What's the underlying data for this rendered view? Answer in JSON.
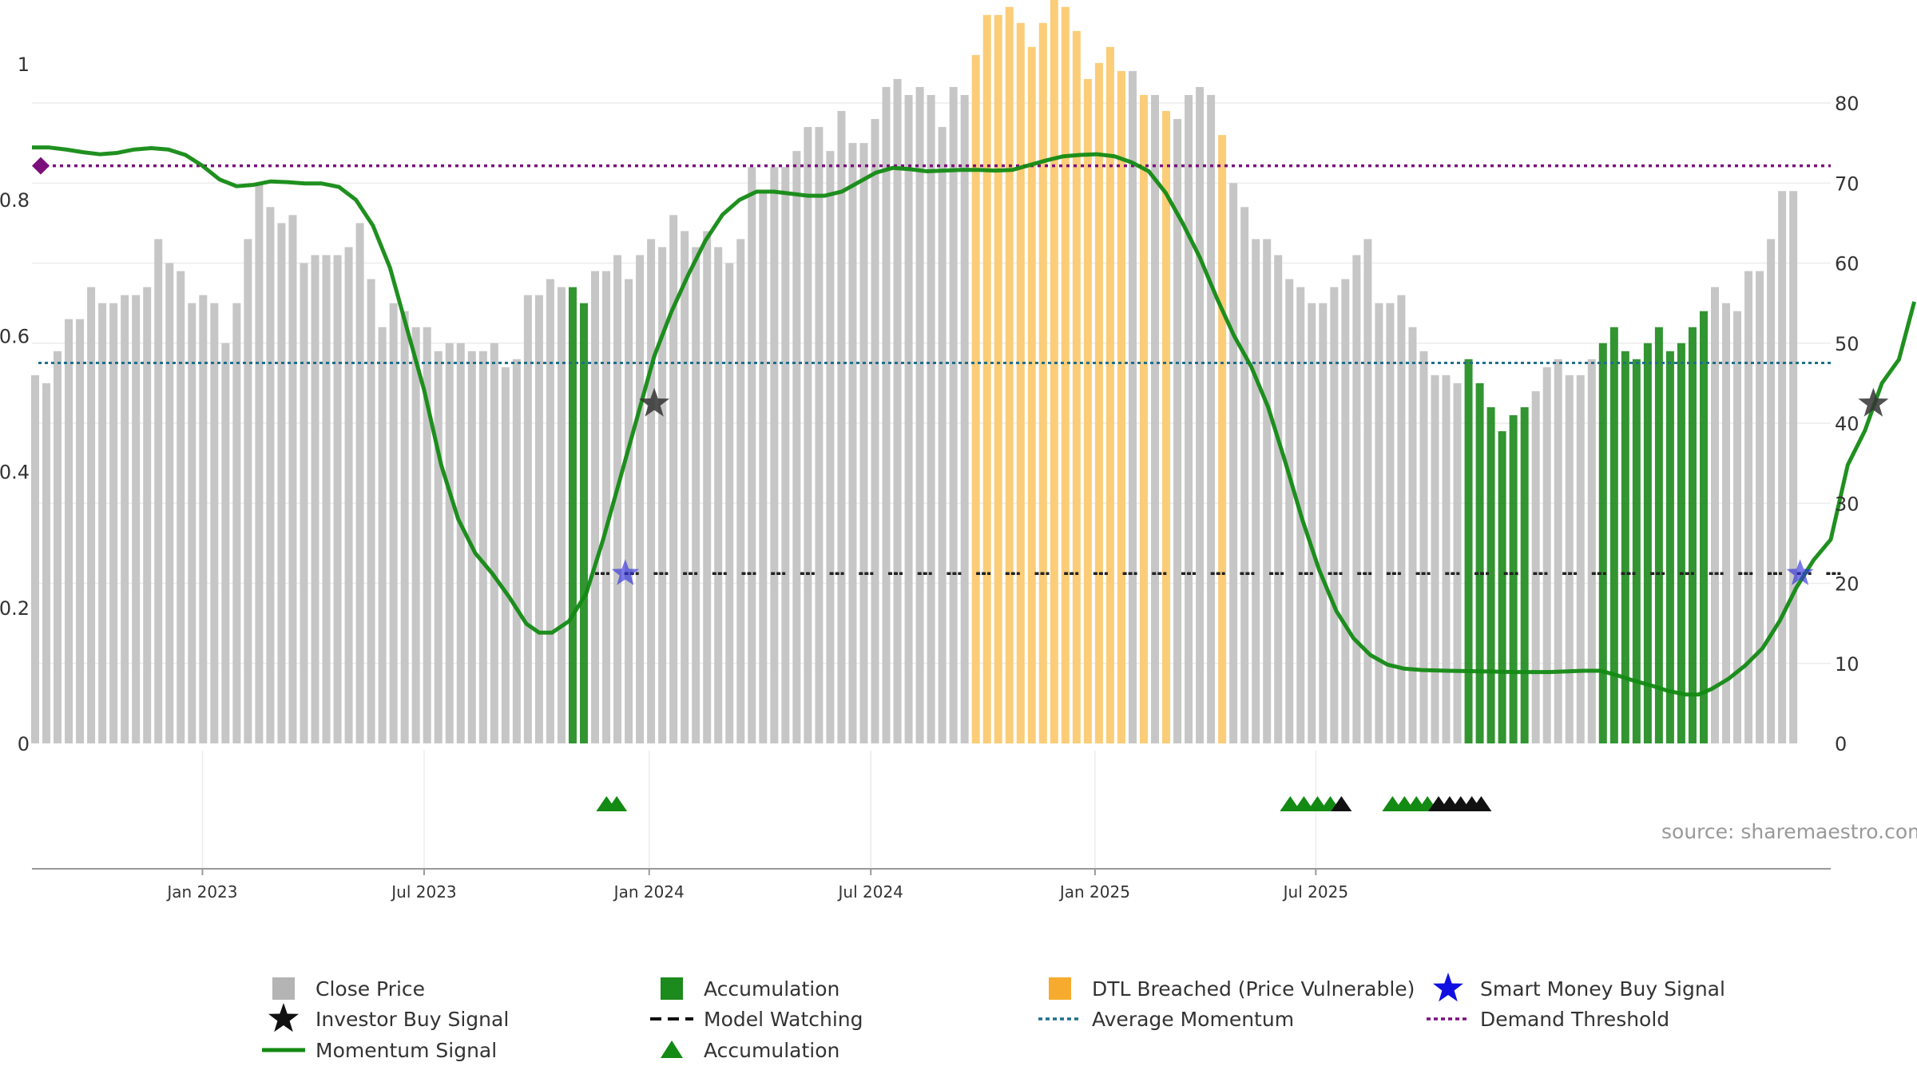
{
  "chart_data": {
    "type": "bar",
    "title": "",
    "source": "source: sharemaestro.com",
    "left_axis": {
      "range": [
        0,
        1
      ],
      "ticks": [
        "0",
        "0.2",
        "0.4",
        "0.6",
        "0.8",
        "1"
      ]
    },
    "right_axis": {
      "range": [
        0,
        80
      ],
      "ticks": [
        "0",
        "10",
        "20",
        "30",
        "40",
        "50",
        "60",
        "70",
        "80"
      ]
    },
    "x_axis": {
      "range_weeks": [
        -20,
        191
      ],
      "ticks": [
        {
          "label": "Jan 2023",
          "week": 0
        },
        {
          "label": "Jul 2023",
          "week": 26
        },
        {
          "label": "Jan 2024",
          "week": 52.4
        },
        {
          "label": "Jul 2024",
          "week": 78.4
        },
        {
          "label": "Jan 2025",
          "week": 104.7
        },
        {
          "label": "Jul 2025",
          "week": 130.6
        }
      ]
    },
    "close_price": [
      46,
      45,
      49,
      53,
      53,
      57,
      55,
      55,
      56,
      56,
      57,
      63,
      60,
      59,
      55,
      56,
      55,
      50,
      55,
      63,
      70,
      67,
      65,
      66,
      60,
      61,
      61,
      61,
      62,
      65,
      58,
      52,
      55,
      54,
      52,
      52,
      49,
      50,
      50,
      49,
      49,
      50,
      47,
      48,
      56,
      56,
      58,
      57,
      57,
      55,
      59,
      59,
      61,
      58,
      61,
      63,
      62,
      66,
      64,
      62,
      64,
      62,
      60,
      63,
      72,
      69,
      72,
      72,
      74,
      77,
      77,
      74,
      79,
      75,
      75,
      78,
      82,
      83,
      81,
      82,
      81,
      77,
      82,
      81,
      86,
      91,
      91,
      92,
      90,
      87,
      90,
      94,
      92,
      89,
      83,
      85,
      87,
      84,
      84,
      81,
      81,
      79,
      78,
      81,
      82,
      81,
      76,
      70,
      67,
      63,
      63,
      61,
      58,
      57,
      55,
      55,
      57,
      58,
      61,
      63,
      55,
      55,
      56,
      52,
      49,
      46,
      46,
      45,
      48,
      45,
      42,
      39,
      41,
      42,
      44,
      47,
      48,
      46,
      46,
      48,
      50,
      52,
      49,
      48,
      50,
      52,
      49,
      50,
      52,
      54,
      57,
      55,
      54,
      59,
      59,
      63,
      69,
      69
    ],
    "accumulation_weeks": [
      48,
      49,
      128,
      129,
      130,
      131,
      132,
      133,
      140,
      141,
      142,
      143,
      144,
      145,
      146,
      147,
      148,
      149
    ],
    "dtl_breached_weeks": [
      84,
      85,
      86,
      87,
      88,
      89,
      90,
      91,
      92,
      93,
      94,
      95,
      96,
      97,
      99,
      101,
      106
    ],
    "momentum_signal": [
      [
        -20,
        0.877
      ],
      [
        -18,
        0.877
      ],
      [
        -16,
        0.874
      ],
      [
        -14,
        0.87
      ],
      [
        -12,
        0.867
      ],
      [
        -10,
        0.869
      ],
      [
        -8,
        0.874
      ],
      [
        -6,
        0.876
      ],
      [
        -4,
        0.874
      ],
      [
        -2,
        0.866
      ],
      [
        0,
        0.85
      ],
      [
        2,
        0.83
      ],
      [
        4,
        0.82
      ],
      [
        6,
        0.822
      ],
      [
        8,
        0.827
      ],
      [
        10,
        0.826
      ],
      [
        12,
        0.824
      ],
      [
        14,
        0.824
      ],
      [
        16,
        0.819
      ],
      [
        18,
        0.8
      ],
      [
        20,
        0.762
      ],
      [
        22,
        0.7
      ],
      [
        24,
        0.61
      ],
      [
        26,
        0.52
      ],
      [
        28,
        0.41
      ],
      [
        30,
        0.33
      ],
      [
        32,
        0.28
      ],
      [
        34,
        0.25
      ],
      [
        36,
        0.215
      ],
      [
        38,
        0.176
      ],
      [
        39.5,
        0.163
      ],
      [
        41,
        0.163
      ],
      [
        43,
        0.18
      ],
      [
        45,
        0.22
      ],
      [
        47,
        0.3
      ],
      [
        49,
        0.39
      ],
      [
        51,
        0.48
      ],
      [
        53,
        0.57
      ],
      [
        55,
        0.635
      ],
      [
        57,
        0.69
      ],
      [
        59,
        0.74
      ],
      [
        61,
        0.778
      ],
      [
        63,
        0.8
      ],
      [
        65,
        0.812
      ],
      [
        67,
        0.812
      ],
      [
        69,
        0.809
      ],
      [
        71,
        0.806
      ],
      [
        73,
        0.806
      ],
      [
        75,
        0.812
      ],
      [
        77,
        0.826
      ],
      [
        79,
        0.84
      ],
      [
        81,
        0.847
      ],
      [
        83,
        0.845
      ],
      [
        85,
        0.842
      ],
      [
        87,
        0.843
      ],
      [
        89,
        0.844
      ],
      [
        91,
        0.844
      ],
      [
        93,
        0.843
      ],
      [
        95,
        0.844
      ],
      [
        97,
        0.851
      ],
      [
        99,
        0.858
      ],
      [
        101,
        0.864
      ],
      [
        103,
        0.866
      ],
      [
        105,
        0.867
      ],
      [
        107,
        0.864
      ],
      [
        109,
        0.855
      ],
      [
        111,
        0.842
      ],
      [
        113,
        0.81
      ],
      [
        115,
        0.765
      ],
      [
        117,
        0.715
      ],
      [
        119,
        0.655
      ],
      [
        121,
        0.6
      ],
      [
        123,
        0.555
      ],
      [
        125,
        0.495
      ],
      [
        127,
        0.415
      ],
      [
        129,
        0.33
      ],
      [
        131,
        0.255
      ],
      [
        133,
        0.195
      ],
      [
        135,
        0.155
      ],
      [
        137,
        0.13
      ],
      [
        139,
        0.116
      ],
      [
        141,
        0.11
      ],
      [
        143,
        0.108
      ],
      [
        146,
        0.107
      ],
      [
        150,
        0.106
      ],
      [
        154,
        0.105
      ],
      [
        158,
        0.105
      ],
      [
        162,
        0.107
      ],
      [
        164,
        0.107
      ],
      [
        166,
        0.1
      ],
      [
        168,
        0.092
      ],
      [
        170,
        0.085
      ],
      [
        172,
        0.077
      ],
      [
        174,
        0.072
      ],
      [
        175.5,
        0.072
      ],
      [
        177,
        0.08
      ],
      [
        179,
        0.095
      ],
      [
        181,
        0.115
      ],
      [
        183,
        0.14
      ],
      [
        185,
        0.18
      ],
      [
        187,
        0.23
      ],
      [
        189,
        0.27
      ],
      [
        191,
        0.3
      ],
      [
        193,
        0.41
      ],
      [
        195,
        0.46
      ],
      [
        197,
        0.53
      ],
      [
        199,
        0.565
      ],
      [
        200.8,
        0.65
      ]
    ],
    "average_momentum": 0.56,
    "demand_threshold": 0.85,
    "model_watching_level": 0.25,
    "model_watching_start_week": 50,
    "smart_money_buy_signals": [
      [
        49.6,
        0.25
      ],
      [
        187.4,
        0.25
      ]
    ],
    "investor_buy_signals": [
      [
        53,
        0.5
      ],
      [
        196,
        0.5
      ]
    ],
    "accumulation_triangles": [
      {
        "week": 47.4,
        "color": "green"
      },
      {
        "week": 48.6,
        "color": "green"
      },
      {
        "week": 127.6,
        "color": "green"
      },
      {
        "week": 129.2,
        "color": "green"
      },
      {
        "week": 130.8,
        "color": "green"
      },
      {
        "week": 132.3,
        "color": "green"
      },
      {
        "week": 133.6,
        "color": "black"
      },
      {
        "week": 139.6,
        "color": "green"
      },
      {
        "week": 141.0,
        "color": "green"
      },
      {
        "week": 142.4,
        "color": "green"
      },
      {
        "week": 143.7,
        "color": "green"
      },
      {
        "week": 145.0,
        "color": "black"
      },
      {
        "week": 146.3,
        "color": "black"
      },
      {
        "week": 147.6,
        "color": "black"
      },
      {
        "week": 148.9,
        "color": "black"
      },
      {
        "week": 150.0,
        "color": "black"
      }
    ],
    "legend": [
      {
        "label": "Close Price",
        "symbol": "square",
        "color": "#b4b4b4"
      },
      {
        "label": "Accumulation",
        "symbol": "square",
        "color": "#1c8a1c"
      },
      {
        "label": "DTL Breached (Price Vulnerable)",
        "symbol": "square",
        "color": "#f5a623"
      },
      {
        "label": "Smart Money Buy Signal",
        "symbol": "star",
        "color": "#1010e0"
      },
      {
        "label": "Investor Buy Signal",
        "symbol": "star",
        "color": "#111111"
      },
      {
        "label": "Model Watching",
        "symbol": "dash",
        "color": "#111111"
      },
      {
        "label": "Average Momentum",
        "symbol": "dot",
        "color": "#1f6f8b"
      },
      {
        "label": "Demand Threshold",
        "symbol": "dot",
        "color": "#7b0f7b"
      },
      {
        "label": "Momentum Signal",
        "symbol": "line",
        "color": "#138a13"
      },
      {
        "label": "Accumulation",
        "symbol": "triangle",
        "color": "#138a13"
      }
    ]
  }
}
